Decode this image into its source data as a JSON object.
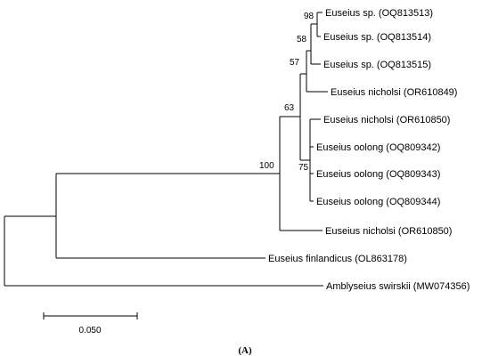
{
  "tree": {
    "leaves": {
      "l1": "Euseius sp. (OQ813513)",
      "l2": "Euseius sp. (OQ813514)",
      "l3": "Euseius sp. (OQ813515)",
      "l4": "Euseius nicholsi (OR610849)",
      "l5": "Euseius nicholsi (OR610850)",
      "l6": "Euseius oolong (OQ809342)",
      "l7": "Euseius oolong (OQ809343)",
      "l8": "Euseius oolong (OQ809344)",
      "l9": "Euseius nicholsi (OR610850)",
      "l10": "Euseius finlandicus (OL863178)",
      "l11": "Amblyseius swirskii (MW074356)"
    },
    "support": {
      "s98": "98",
      "s58": "58",
      "s57": "57",
      "s63": "63",
      "s100": "100",
      "s75": "75"
    }
  },
  "scale_bar": {
    "label": "0.050",
    "value": 0.05
  },
  "panel_label": "(A)"
}
